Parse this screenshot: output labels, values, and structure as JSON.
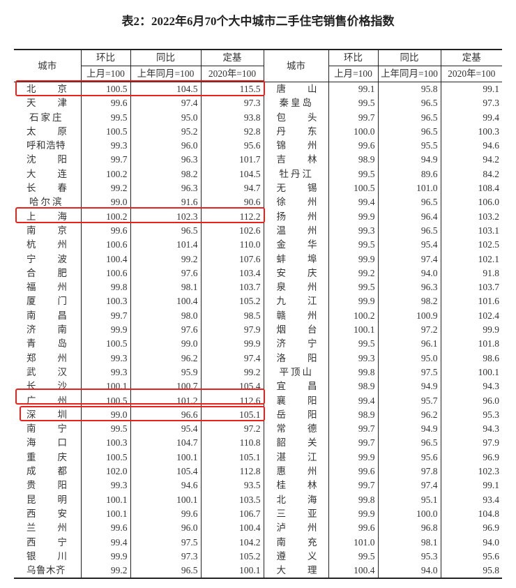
{
  "title": "表2：2022年6月70个大中城市二手住宅销售价格指数",
  "headers": {
    "city": "城市",
    "mom": "环比",
    "mom_base": "上月=100",
    "yoy": "同比",
    "yoy_base": "上年同月=100",
    "fixed": "定基",
    "fixed_base": "2020年=100"
  },
  "highlight_color": "#e8211b",
  "highlighted_cities": [
    "北京",
    "上海",
    "广州",
    "深圳"
  ],
  "left": [
    [
      "北京",
      "100.5",
      "104.5",
      "115.5"
    ],
    [
      "天津",
      "99.6",
      "97.4",
      "97.3"
    ],
    [
      "石家庄",
      "99.5",
      "95.0",
      "93.8"
    ],
    [
      "太原",
      "100.5",
      "95.2",
      "92.8"
    ],
    [
      "呼和浩特",
      "99.3",
      "96.0",
      "95.6"
    ],
    [
      "沈阳",
      "99.7",
      "96.3",
      "101.7"
    ],
    [
      "大连",
      "100.2",
      "98.2",
      "104.5"
    ],
    [
      "长春",
      "99.2",
      "96.3",
      "94.7"
    ],
    [
      "哈尔滨",
      "99.0",
      "91.6",
      "90.6"
    ],
    [
      "上海",
      "100.2",
      "102.3",
      "112.2"
    ],
    [
      "南京",
      "99.6",
      "96.5",
      "102.6"
    ],
    [
      "杭州",
      "100.6",
      "101.4",
      "110.0"
    ],
    [
      "宁波",
      "100.4",
      "99.2",
      "107.6"
    ],
    [
      "合肥",
      "100.6",
      "97.6",
      "103.4"
    ],
    [
      "福州",
      "99.8",
      "98.1",
      "103.7"
    ],
    [
      "厦门",
      "100.3",
      "100.4",
      "105.2"
    ],
    [
      "南昌",
      "99.7",
      "98.0",
      "98.5"
    ],
    [
      "济南",
      "99.9",
      "97.6",
      "97.9"
    ],
    [
      "青岛",
      "100.5",
      "99.0",
      "99.9"
    ],
    [
      "郑州",
      "99.3",
      "96.2",
      "97.4"
    ],
    [
      "武汉",
      "99.3",
      "95.9",
      "99.2"
    ],
    [
      "长沙",
      "100.1",
      "100.7",
      "105.4"
    ],
    [
      "广州",
      "100.5",
      "101.2",
      "112.6"
    ],
    [
      "深圳",
      "99.0",
      "96.6",
      "105.1"
    ],
    [
      "南宁",
      "99.5",
      "95.4",
      "97.2"
    ],
    [
      "海口",
      "100.3",
      "104.7",
      "110.8"
    ],
    [
      "重庆",
      "100.5",
      "100.1",
      "105.1"
    ],
    [
      "成都",
      "102.0",
      "105.4",
      "112.8"
    ],
    [
      "贵阳",
      "99.3",
      "94.6",
      "93.5"
    ],
    [
      "昆明",
      "100.1",
      "100.1",
      "103.5"
    ],
    [
      "西安",
      "100.1",
      "99.6",
      "106.7"
    ],
    [
      "兰州",
      "99.6",
      "96.0",
      "100.4"
    ],
    [
      "西宁",
      "99.4",
      "97.5",
      "104.2"
    ],
    [
      "银川",
      "99.9",
      "97.3",
      "105.2"
    ],
    [
      "乌鲁木齐",
      "99.2",
      "96.5",
      "100.1"
    ]
  ],
  "right": [
    [
      "唐山",
      "99.1",
      "95.8",
      "99.1"
    ],
    [
      "秦皇岛",
      "99.5",
      "96.5",
      "97.3"
    ],
    [
      "包头",
      "99.7",
      "96.5",
      "99.4"
    ],
    [
      "丹东",
      "100.0",
      "96.5",
      "100.3"
    ],
    [
      "锦州",
      "99.6",
      "95.5",
      "94.6"
    ],
    [
      "吉林",
      "98.9",
      "94.9",
      "94.2"
    ],
    [
      "牡丹江",
      "99.5",
      "89.6",
      "84.2"
    ],
    [
      "无锡",
      "100.5",
      "101.0",
      "108.4"
    ],
    [
      "徐州",
      "99.4",
      "96.5",
      "106.0"
    ],
    [
      "扬州",
      "99.9",
      "96.4",
      "103.2"
    ],
    [
      "温州",
      "99.3",
      "96.5",
      "103.1"
    ],
    [
      "金华",
      "99.5",
      "95.4",
      "102.5"
    ],
    [
      "蚌埠",
      "99.9",
      "97.4",
      "102.1"
    ],
    [
      "安庆",
      "99.2",
      "94.0",
      "91.8"
    ],
    [
      "泉州",
      "99.5",
      "96.3",
      "103.7"
    ],
    [
      "九江",
      "99.9",
      "98.2",
      "101.6"
    ],
    [
      "赣州",
      "100.2",
      "100.9",
      "102.4"
    ],
    [
      "烟台",
      "100.1",
      "97.2",
      "99.9"
    ],
    [
      "济宁",
      "99.5",
      "96.1",
      "101.8"
    ],
    [
      "洛阳",
      "99.3",
      "95.0",
      "98.6"
    ],
    [
      "平顶山",
      "99.8",
      "97.5",
      "100.1"
    ],
    [
      "宜昌",
      "98.9",
      "94.9",
      "94.3"
    ],
    [
      "襄阳",
      "99.4",
      "95.7",
      "96.0"
    ],
    [
      "岳阳",
      "98.9",
      "96.2",
      "95.3"
    ],
    [
      "常德",
      "99.7",
      "94.9",
      "94.3"
    ],
    [
      "韶关",
      "99.7",
      "96.5",
      "97.9"
    ],
    [
      "湛江",
      "99.9",
      "95.6",
      "96.9"
    ],
    [
      "惠州",
      "99.6",
      "97.8",
      "102.3"
    ],
    [
      "桂林",
      "99.7",
      "97.4",
      "99.1"
    ],
    [
      "北海",
      "99.8",
      "95.1",
      "93.4"
    ],
    [
      "三亚",
      "99.9",
      "100.0",
      "104.8"
    ],
    [
      "泸州",
      "99.6",
      "96.8",
      "96.9"
    ],
    [
      "南充",
      "101.0",
      "98.1",
      "94.0"
    ],
    [
      "遵义",
      "99.5",
      "95.3",
      "95.6"
    ],
    [
      "大理",
      "100.4",
      "94.0",
      "95.8"
    ]
  ]
}
